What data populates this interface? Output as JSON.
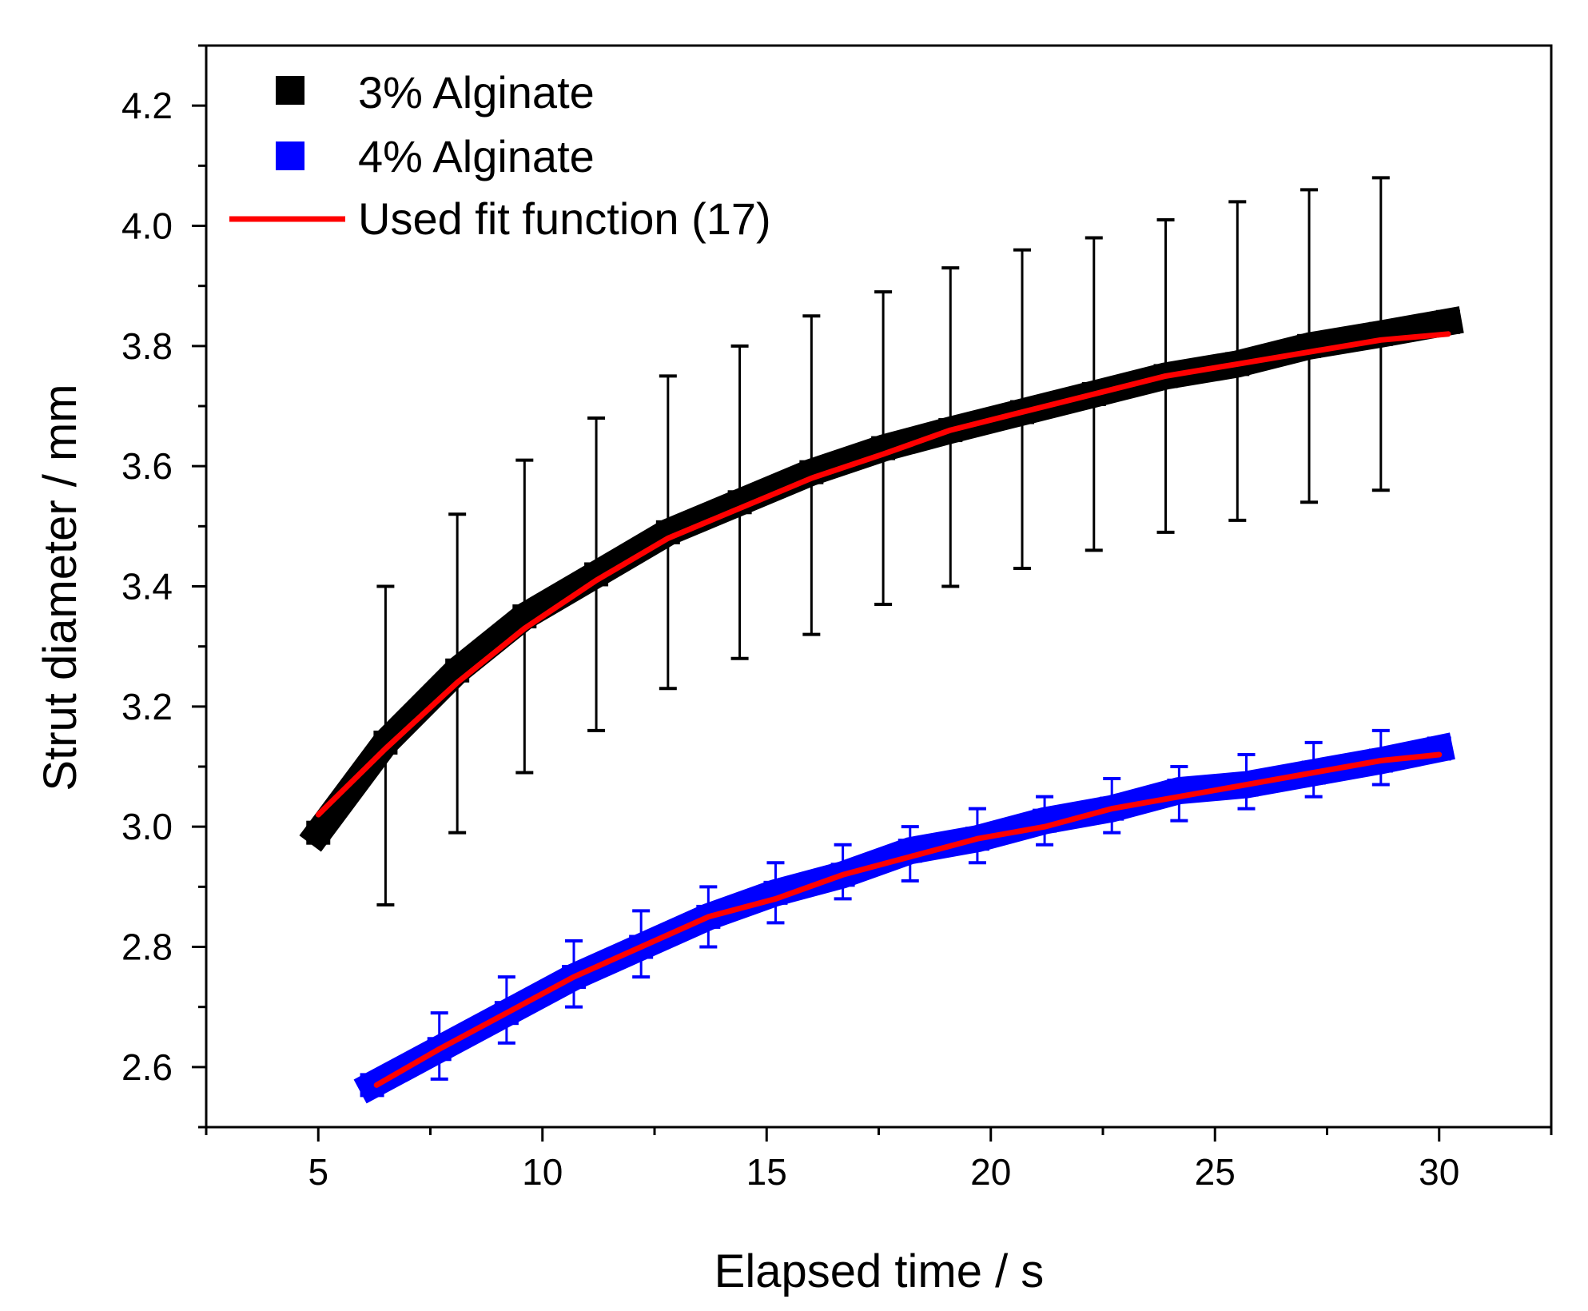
{
  "chart_data": {
    "type": "line",
    "title": "",
    "xlabel": "Elapsed time / s",
    "ylabel": "Strut diameter / mm",
    "xlim": [
      2.5,
      32.5
    ],
    "ylim": [
      2.5,
      4.3
    ],
    "xticks": [
      5,
      10,
      15,
      20,
      25,
      30
    ],
    "xtick_labels": [
      "5",
      "10",
      "15",
      "20",
      "25",
      "30"
    ],
    "yticks": [
      2.6,
      2.8,
      3.0,
      3.2,
      3.4,
      3.6,
      3.8,
      4.0,
      4.2
    ],
    "ytick_labels": [
      "2.6",
      "2.8",
      "3.0",
      "3.2",
      "3.4",
      "3.6",
      "3.8",
      "4.0",
      "4.2"
    ],
    "legend_position": "top-left",
    "series": [
      {
        "name": "3% Alginate",
        "style": "thick square markers with error bars",
        "color": "#000000",
        "x": [
          5.0,
          6.5,
          8.1,
          9.6,
          11.2,
          12.8,
          14.4,
          16.0,
          17.6,
          19.1,
          20.7,
          22.3,
          23.9,
          25.5,
          27.1,
          28.7,
          30.2
        ],
        "values": [
          2.99,
          3.14,
          3.26,
          3.35,
          3.42,
          3.49,
          3.54,
          3.59,
          3.63,
          3.66,
          3.69,
          3.72,
          3.75,
          3.77,
          3.8,
          3.82,
          3.84
        ],
        "errors": {
          "x": [
            6.5,
            8.1,
            9.6,
            11.2,
            12.8,
            14.4,
            16.0,
            17.6,
            19.1,
            20.7,
            22.3,
            23.9,
            25.5,
            27.1,
            28.7
          ],
          "upper": [
            3.4,
            3.52,
            3.61,
            3.68,
            3.75,
            3.8,
            3.85,
            3.89,
            3.93,
            3.96,
            3.98,
            4.01,
            4.04,
            4.06,
            4.08
          ],
          "lower": [
            2.87,
            2.99,
            3.09,
            3.16,
            3.23,
            3.28,
            3.32,
            3.37,
            3.4,
            3.43,
            3.46,
            3.49,
            3.51,
            3.54,
            3.56
          ]
        }
      },
      {
        "name": "4% Alginate",
        "style": "thick square markers with error bars",
        "color": "#0000ff",
        "x": [
          6.2,
          7.7,
          9.2,
          10.7,
          12.2,
          13.7,
          15.2,
          16.7,
          18.2,
          19.7,
          21.2,
          22.7,
          24.2,
          25.7,
          27.2,
          28.7,
          30.0
        ],
        "values": [
          2.57,
          2.63,
          2.69,
          2.75,
          2.8,
          2.85,
          2.89,
          2.92,
          2.96,
          2.98,
          3.01,
          3.03,
          3.06,
          3.07,
          3.09,
          3.11,
          3.13
        ],
        "errors": {
          "x": [
            7.7,
            9.2,
            10.7,
            12.2,
            13.7,
            15.2,
            16.7,
            18.2,
            19.7,
            21.2,
            22.7,
            24.2,
            25.7,
            27.2,
            28.7
          ],
          "upper": [
            2.69,
            2.75,
            2.81,
            2.86,
            2.9,
            2.94,
            2.97,
            3.0,
            3.03,
            3.05,
            3.08,
            3.1,
            3.12,
            3.14,
            3.16
          ],
          "lower": [
            2.58,
            2.64,
            2.7,
            2.75,
            2.8,
            2.84,
            2.88,
            2.91,
            2.94,
            2.97,
            2.99,
            3.01,
            3.03,
            3.05,
            3.07
          ]
        }
      },
      {
        "name": "Used fit function (17)",
        "style": "line",
        "color": "#ff0000",
        "fits": [
          {
            "for": "3% Alginate",
            "x": [
              5.0,
              6.5,
              8.1,
              9.6,
              11.2,
              12.8,
              14.4,
              16.0,
              17.6,
              19.1,
              20.7,
              22.3,
              23.9,
              25.5,
              27.1,
              28.7,
              30.2
            ],
            "values": [
              3.02,
              3.13,
              3.24,
              3.33,
              3.41,
              3.48,
              3.53,
              3.58,
              3.62,
              3.66,
              3.69,
              3.72,
              3.75,
              3.77,
              3.79,
              3.81,
              3.82
            ]
          },
          {
            "for": "4% Alginate",
            "x": [
              6.3,
              7.7,
              9.2,
              10.7,
              12.2,
              13.7,
              15.2,
              16.7,
              18.2,
              19.7,
              21.2,
              22.7,
              24.2,
              25.7,
              27.2,
              28.7,
              30.0
            ],
            "values": [
              2.57,
              2.63,
              2.69,
              2.75,
              2.8,
              2.85,
              2.88,
              2.92,
              2.95,
              2.98,
              3.0,
              3.03,
              3.05,
              3.07,
              3.09,
              3.11,
              3.12
            ]
          }
        ]
      }
    ]
  }
}
